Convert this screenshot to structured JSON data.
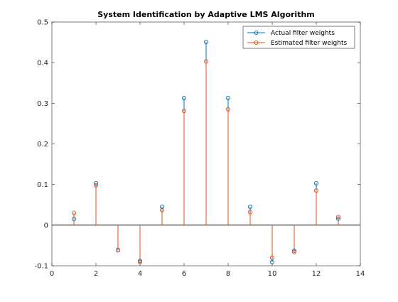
{
  "chart_data": {
    "type": "stem",
    "title": "System Identification by Adaptive LMS Algorithm",
    "xlabel": "",
    "ylabel": "",
    "xlim": [
      0,
      14
    ],
    "ylim": [
      -0.1,
      0.5
    ],
    "x_ticks": [
      0,
      2,
      4,
      6,
      8,
      10,
      12,
      14
    ],
    "y_ticks": [
      -0.1,
      0,
      0.1,
      0.2,
      0.3,
      0.4,
      0.5
    ],
    "x_tick_labels": [
      "0",
      "2",
      "4",
      "6",
      "8",
      "10",
      "12",
      "14"
    ],
    "y_tick_labels": [
      "-0.1",
      "0",
      "0.1",
      "0.2",
      "0.3",
      "0.4",
      "0.5"
    ],
    "grid": false,
    "legend_position": "top-right",
    "x": [
      1,
      2,
      3,
      4,
      5,
      6,
      7,
      8,
      9,
      10,
      11,
      12,
      13
    ],
    "series": [
      {
        "name": "Actual filter weights",
        "color": "#0072BD",
        "marker": "circle",
        "values": [
          0.015,
          0.103,
          -0.062,
          -0.088,
          0.045,
          0.313,
          0.451,
          0.313,
          0.045,
          -0.091,
          -0.063,
          0.103,
          0.016
        ]
      },
      {
        "name": "Estimated filter weights",
        "color": "#D95319",
        "marker": "circle",
        "values": [
          0.03,
          0.098,
          -0.061,
          -0.091,
          0.037,
          0.281,
          0.403,
          0.285,
          0.032,
          -0.08,
          -0.066,
          0.085,
          0.02
        ]
      }
    ]
  }
}
